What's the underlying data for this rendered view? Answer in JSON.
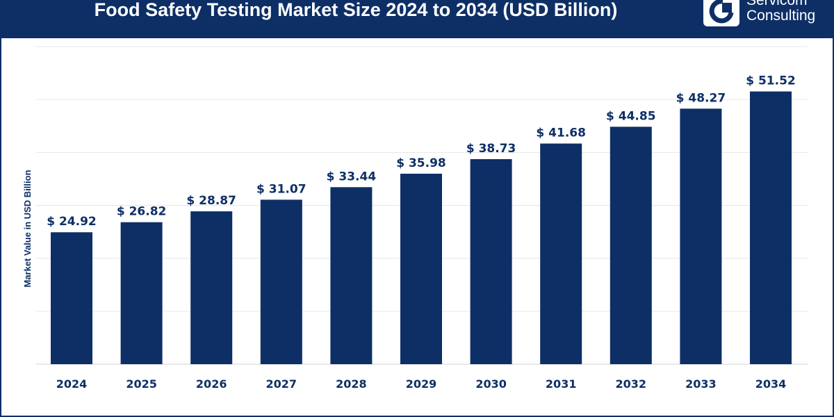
{
  "header": {
    "title": "Food Safety Testing Market Size 2024 to 2034 (USD Billion)",
    "logo_line1": "Servicom",
    "logo_line2": "Consulting"
  },
  "chart_data": {
    "type": "bar",
    "categories": [
      "2024",
      "2025",
      "2026",
      "2027",
      "2028",
      "2029",
      "2030",
      "2031",
      "2032",
      "2033",
      "2034"
    ],
    "values": [
      24.92,
      26.82,
      28.87,
      31.07,
      33.44,
      35.98,
      38.73,
      41.68,
      44.85,
      48.27,
      51.52
    ],
    "data_labels": [
      "$ 24.92",
      "$ 26.82",
      "$ 28.87",
      "$ 31.07",
      "$ 33.44",
      "$ 35.98",
      "$ 38.73",
      "$ 41.68",
      "$ 44.85",
      "$ 48.27",
      "$ 51.52"
    ],
    "title": "Food Safety Testing Market Size 2024 to 2034 (USD Billion)",
    "xlabel": "",
    "ylabel": "Market Value in USD Billion",
    "ylim": [
      0,
      60
    ],
    "grid": true,
    "colors": {
      "bar": "#0d2f66",
      "grid": "#e6e6e6",
      "axis": "#d0d0d0"
    }
  }
}
